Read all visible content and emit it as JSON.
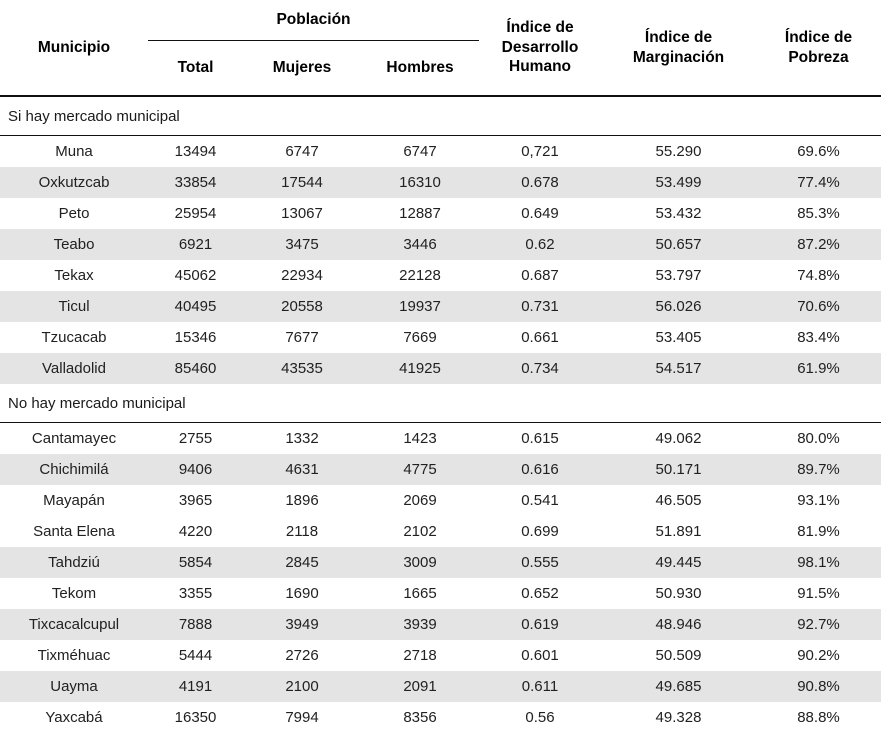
{
  "chart_data": {
    "type": "table",
    "header": {
      "municipio": "Municipio",
      "poblacion_group": "Población",
      "total": "Total",
      "mujeres": "Mujeres",
      "hombres": "Hombres",
      "idh": "Índice de Desarrollo Humano",
      "marginacion": "Índice de Marginación",
      "pobreza": "Índice de Pobreza"
    },
    "sections": [
      {
        "label": "Si hay mercado municipal",
        "shaded_rows": [
          1,
          3,
          5,
          7
        ],
        "rows": [
          {
            "municipio": "Muna",
            "total": "13494",
            "mujeres": "6747",
            "hombres": "6747",
            "idh": "0,721",
            "marginacion": "55.290",
            "pobreza": "69.6%"
          },
          {
            "municipio": "Oxkutzcab",
            "total": "33854",
            "mujeres": "17544",
            "hombres": "16310",
            "idh": "0.678",
            "marginacion": "53.499",
            "pobreza": "77.4%"
          },
          {
            "municipio": "Peto",
            "total": "25954",
            "mujeres": "13067",
            "hombres": "12887",
            "idh": "0.649",
            "marginacion": "53.432",
            "pobreza": "85.3%"
          },
          {
            "municipio": "Teabo",
            "total": "6921",
            "mujeres": "3475",
            "hombres": "3446",
            "idh": "0.62",
            "marginacion": "50.657",
            "pobreza": "87.2%"
          },
          {
            "municipio": "Tekax",
            "total": "45062",
            "mujeres": "22934",
            "hombres": "22128",
            "idh": "0.687",
            "marginacion": "53.797",
            "pobreza": "74.8%"
          },
          {
            "municipio": "Ticul",
            "total": "40495",
            "mujeres": "20558",
            "hombres": "19937",
            "idh": "0.731",
            "marginacion": "56.026",
            "pobreza": "70.6%"
          },
          {
            "municipio": "Tzucacab",
            "total": "15346",
            "mujeres": "7677",
            "hombres": "7669",
            "idh": "0.661",
            "marginacion": "53.405",
            "pobreza": "83.4%"
          },
          {
            "municipio": "Valladolid",
            "total": "85460",
            "mujeres": "43535",
            "hombres": "41925",
            "idh": "0.734",
            "marginacion": "54.517",
            "pobreza": "61.9%"
          }
        ]
      },
      {
        "label": "No hay mercado municipal",
        "shaded_rows": [
          1,
          4,
          6,
          8
        ],
        "rows": [
          {
            "municipio": "Cantamayec",
            "total": "2755",
            "mujeres": "1332",
            "hombres": "1423",
            "idh": "0.615",
            "marginacion": "49.062",
            "pobreza": "80.0%"
          },
          {
            "municipio": "Chichimilá",
            "total": "9406",
            "mujeres": "4631",
            "hombres": "4775",
            "idh": "0.616",
            "marginacion": "50.171",
            "pobreza": "89.7%"
          },
          {
            "municipio": "Mayapán",
            "total": "3965",
            "mujeres": "1896",
            "hombres": "2069",
            "idh": "0.541",
            "marginacion": "46.505",
            "pobreza": "93.1%"
          },
          {
            "municipio": "Santa Elena",
            "total": "4220",
            "mujeres": "2118",
            "hombres": "2102",
            "idh": "0.699",
            "marginacion": "51.891",
            "pobreza": "81.9%"
          },
          {
            "municipio": "Tahdziú",
            "total": "5854",
            "mujeres": "2845",
            "hombres": "3009",
            "idh": "0.555",
            "marginacion": "49.445",
            "pobreza": "98.1%"
          },
          {
            "municipio": "Tekom",
            "total": "3355",
            "mujeres": "1690",
            "hombres": "1665",
            "idh": "0.652",
            "marginacion": "50.930",
            "pobreza": "91.5%"
          },
          {
            "municipio": "Tixcacalcupul",
            "total": "7888",
            "mujeres": "3949",
            "hombres": "3939",
            "idh": "0.619",
            "marginacion": "48.946",
            "pobreza": "92.7%"
          },
          {
            "municipio": "Tixméhuac",
            "total": "5444",
            "mujeres": "2726",
            "hombres": "2718",
            "idh": "0.601",
            "marginacion": "50.509",
            "pobreza": "90.2%"
          },
          {
            "municipio": "Uayma",
            "total": "4191",
            "mujeres": "2100",
            "hombres": "2091",
            "idh": "0.611",
            "marginacion": "49.685",
            "pobreza": "90.8%"
          },
          {
            "municipio": "Yaxcabá",
            "total": "16350",
            "mujeres": "7994",
            "hombres": "8356",
            "idh": "0.56",
            "marginacion": "49.328",
            "pobreza": "88.8%"
          }
        ]
      }
    ],
    "colors": {
      "stripe": "#e4e4e4",
      "text": "#212121",
      "rule": "#111111"
    }
  }
}
